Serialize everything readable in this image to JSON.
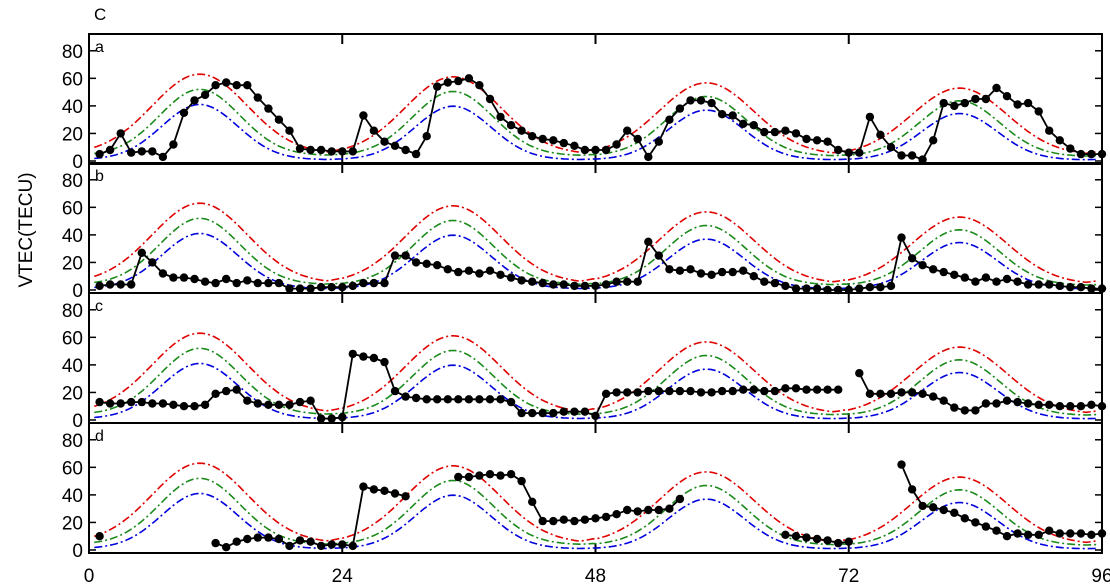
{
  "figure_label": "C",
  "ylabel": "VTEC(TECU)",
  "x_ticks": [
    "0",
    "24",
    "48",
    "72",
    "96"
  ],
  "y_ticks": [
    "0",
    "20",
    "40",
    "60",
    "80"
  ],
  "colors": {
    "red": "#e00000",
    "green": "#1a8a1a",
    "blue": "#0000dd",
    "obs": "#000000"
  },
  "chart_data": [
    {
      "type": "line",
      "panel": "a",
      "xlim": [
        0,
        96
      ],
      "ylim": [
        0,
        90
      ],
      "x": [
        1,
        2,
        3,
        4,
        5,
        6,
        7,
        8,
        9,
        10,
        11,
        12,
        13,
        14,
        15,
        16,
        17,
        18,
        19,
        20,
        21,
        22,
        23,
        24,
        25,
        26,
        27,
        28,
        29,
        30,
        31,
        32,
        33,
        34,
        35,
        36,
        37,
        38,
        39,
        40,
        41,
        42,
        43,
        44,
        45,
        46,
        47,
        48,
        49,
        50,
        51,
        52,
        53,
        54,
        55,
        56,
        57,
        58,
        59,
        60,
        61,
        62,
        63,
        64,
        65,
        66,
        67,
        68,
        69,
        70,
        71,
        72,
        73,
        74,
        75,
        76,
        77,
        78,
        79,
        80,
        81,
        82,
        83,
        84,
        85,
        86,
        87,
        88,
        89,
        90,
        91,
        92,
        93,
        94,
        95,
        96
      ],
      "series": [
        {
          "values": [
            5,
            8,
            20,
            6,
            7,
            7,
            3,
            12,
            35,
            44,
            48,
            55,
            57,
            55,
            55,
            46,
            38,
            30,
            22,
            9,
            8,
            8,
            7,
            7,
            7,
            33,
            22,
            14,
            11,
            8,
            5,
            18,
            54,
            57,
            58,
            60,
            55,
            45,
            32,
            26,
            22,
            18,
            16,
            15,
            13,
            11,
            8,
            8,
            8,
            12,
            22,
            16,
            3,
            14,
            30,
            38,
            44,
            44,
            42,
            34,
            33,
            27,
            26,
            21,
            21,
            22,
            20,
            16,
            15,
            14,
            8,
            6,
            6,
            32,
            19,
            10,
            4,
            4,
            1,
            15,
            42,
            40,
            42,
            45,
            45,
            53,
            47,
            41,
            42,
            36,
            22,
            15,
            9,
            5,
            5,
            5
          ]
        }
      ]
    },
    {
      "type": "line",
      "panel": "b",
      "xlim": [
        0,
        96
      ],
      "ylim": [
        0,
        90
      ],
      "x": [
        1,
        2,
        3,
        4,
        5,
        6,
        7,
        8,
        9,
        10,
        11,
        12,
        13,
        14,
        15,
        16,
        17,
        18,
        19,
        20,
        21,
        22,
        23,
        24,
        25,
        26,
        27,
        28,
        29,
        30,
        31,
        32,
        33,
        34,
        35,
        36,
        37,
        38,
        39,
        40,
        41,
        42,
        43,
        44,
        45,
        46,
        47,
        48,
        49,
        50,
        51,
        52,
        53,
        54,
        55,
        56,
        57,
        58,
        59,
        60,
        61,
        62,
        63,
        64,
        65,
        66,
        67,
        68,
        69,
        70,
        71,
        72,
        73,
        74,
        75,
        76,
        77,
        78,
        79,
        80,
        81,
        82,
        83,
        84,
        85,
        86,
        87,
        88,
        89,
        90,
        91,
        92,
        93,
        94,
        95,
        96
      ],
      "series": [
        {
          "values": [
            3,
            4,
            4,
            4,
            27,
            20,
            12,
            9,
            9,
            8,
            6,
            5,
            8,
            5,
            7,
            5,
            5,
            5,
            1,
            1,
            1,
            2,
            2,
            2,
            3,
            5,
            5,
            5,
            25,
            25,
            20,
            19,
            18,
            15,
            13,
            14,
            12,
            14,
            11,
            9,
            7,
            6,
            5,
            4,
            4,
            3,
            3,
            3,
            4,
            6,
            6,
            6,
            35,
            25,
            15,
            14,
            15,
            12,
            11,
            13,
            13,
            14,
            10,
            6,
            5,
            3,
            1,
            1,
            1,
            0,
            0,
            0,
            1,
            2,
            2,
            3,
            38,
            23,
            18,
            15,
            13,
            11,
            9,
            6,
            9,
            6,
            8,
            6,
            4,
            4,
            4,
            3,
            2,
            2,
            1,
            1
          ]
        }
      ]
    },
    {
      "type": "line",
      "panel": "c",
      "xlim": [
        0,
        96
      ],
      "ylim": [
        0,
        90
      ],
      "x": [
        1,
        2,
        3,
        4,
        5,
        6,
        7,
        8,
        9,
        10,
        11,
        12,
        13,
        14,
        15,
        16,
        17,
        18,
        19,
        20,
        21,
        22,
        23,
        24,
        25,
        26,
        27,
        28,
        29,
        30,
        31,
        32,
        33,
        34,
        35,
        36,
        37,
        38,
        39,
        40,
        41,
        42,
        43,
        44,
        45,
        46,
        47,
        48,
        49,
        50,
        51,
        52,
        53,
        54,
        55,
        56,
        57,
        58,
        59,
        60,
        61,
        62,
        63,
        64,
        65,
        66,
        67,
        68,
        69,
        70,
        71,
        72,
        73,
        74,
        75,
        76,
        77,
        78,
        79,
        80,
        81,
        82,
        83,
        84,
        85,
        86,
        87,
        88,
        89,
        90,
        91,
        92,
        93,
        94,
        95,
        96
      ],
      "series": [
        {
          "values": [
            13,
            12,
            12,
            13,
            13,
            12,
            12,
            11,
            10,
            10,
            11,
            19,
            21,
            22,
            14,
            12,
            11,
            11,
            11,
            13,
            14,
            1,
            1,
            2,
            48,
            46,
            45,
            42,
            21,
            17,
            16,
            15,
            15,
            15,
            15,
            15,
            15,
            15,
            15,
            13,
            5,
            5,
            5,
            5,
            6,
            6,
            6,
            3,
            19,
            20,
            20,
            20,
            21,
            21,
            21,
            21,
            21,
            20,
            20,
            21,
            21,
            22,
            22,
            21,
            21,
            23,
            23,
            22,
            22,
            22,
            22,
            null,
            34,
            19,
            19,
            19,
            20,
            20,
            19,
            17,
            14,
            9,
            7,
            7,
            12,
            12,
            14,
            13,
            12,
            11,
            11,
            10,
            10,
            10,
            11,
            10
          ]
        }
      ]
    },
    {
      "type": "line",
      "panel": "d",
      "xlim": [
        0,
        96
      ],
      "ylim": [
        0,
        90
      ],
      "x": [
        1,
        2,
        3,
        4,
        5,
        6,
        7,
        8,
        9,
        10,
        11,
        12,
        13,
        14,
        15,
        16,
        17,
        18,
        19,
        20,
        21,
        22,
        23,
        24,
        25,
        26,
        27,
        28,
        29,
        30,
        31,
        32,
        33,
        34,
        35,
        36,
        37,
        38,
        39,
        40,
        41,
        42,
        43,
        44,
        45,
        46,
        47,
        48,
        49,
        50,
        51,
        52,
        53,
        54,
        55,
        56,
        57,
        58,
        59,
        60,
        61,
        62,
        63,
        64,
        65,
        66,
        67,
        68,
        69,
        70,
        71,
        72,
        73,
        74,
        75,
        76,
        77,
        78,
        79,
        80,
        81,
        82,
        83,
        84,
        85,
        86,
        87,
        88,
        89,
        90,
        91,
        92,
        93,
        94,
        95,
        96
      ],
      "series": [
        {
          "values": [
            10,
            null,
            null,
            null,
            null,
            null,
            null,
            null,
            null,
            null,
            null,
            5,
            2,
            6,
            8,
            9,
            9,
            8,
            3,
            7,
            6,
            3,
            4,
            4,
            3,
            46,
            44,
            43,
            41,
            39,
            null,
            null,
            null,
            null,
            53,
            53,
            54,
            55,
            54,
            55,
            50,
            35,
            21,
            21,
            22,
            21,
            22,
            23,
            24,
            26,
            29,
            28,
            29,
            29,
            30,
            37,
            null,
            null,
            null,
            null,
            null,
            null,
            null,
            null,
            null,
            11,
            10,
            9,
            8,
            7,
            5,
            6,
            null,
            null,
            null,
            null,
            null,
            null,
            null,
            null,
            null,
            null,
            null,
            null,
            null,
            null,
            null,
            null,
            null,
            null,
            null,
            null,
            null,
            null,
            null,
            null
          ],
          "values_tail": [
            62,
            44,
            32,
            31,
            29,
            27,
            23,
            20,
            17,
            14,
            10,
            12,
            11,
            11,
            14,
            12,
            12,
            12,
            11,
            12
          ]
        }
      ]
    }
  ]
}
